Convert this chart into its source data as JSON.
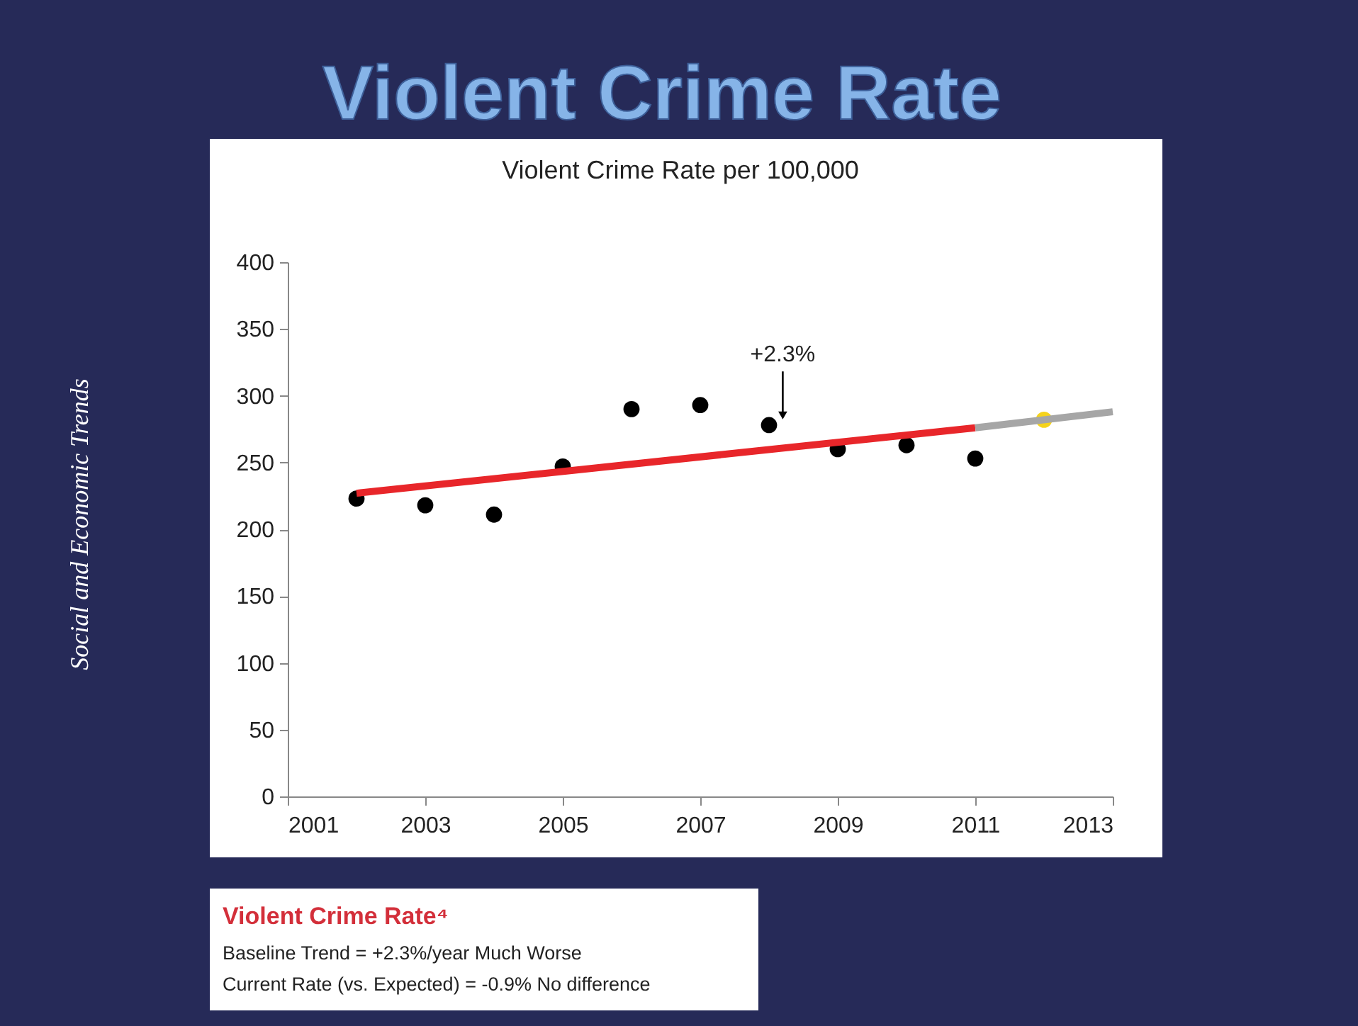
{
  "chart_data": {
    "type": "scatter",
    "title": "Violent Crime Rate",
    "subtitle": "Violent Crime Rate per 100,000",
    "xlim": [
      2001,
      2013
    ],
    "xticks": [
      2001,
      2003,
      2005,
      2007,
      2009,
      2011,
      2013
    ],
    "ylim": [
      0,
      400
    ],
    "yticks": [
      0,
      50,
      100,
      150,
      200,
      250,
      300,
      350,
      400
    ],
    "grid": false,
    "marker": "circle",
    "series": [
      {
        "color": "#000000",
        "x": [
          2002,
          2003,
          2004,
          2005,
          2006,
          2007,
          2008,
          2009,
          2010,
          2011
        ],
        "values": [
          223,
          218,
          211,
          247,
          290,
          293,
          278,
          260,
          263,
          253
        ]
      },
      {
        "color": "#f5d31c",
        "x": [
          2012
        ],
        "values": [
          282
        ]
      },
      {
        "type": "line",
        "marker": "none",
        "line_style": "solid",
        "color": "#e8262a",
        "x": [
          2002,
          2011
        ],
        "values": [
          227,
          276
        ]
      },
      {
        "type": "line",
        "marker": "none",
        "line_style": "solid",
        "color": "#a6a6a6",
        "x": [
          2011,
          2013
        ],
        "values": [
          276,
          288
        ]
      }
    ],
    "annotations": [
      {
        "text": "+2.3%",
        "x": 2008.2,
        "y": 280
      },
      "Social and Economic Trends",
      "Violent Crime Rate⁴",
      "Baseline Trend = +2.3%/year   Much Worse",
      "Current Rate (vs. Expected) = -0.9%   No difference"
    ]
  }
}
